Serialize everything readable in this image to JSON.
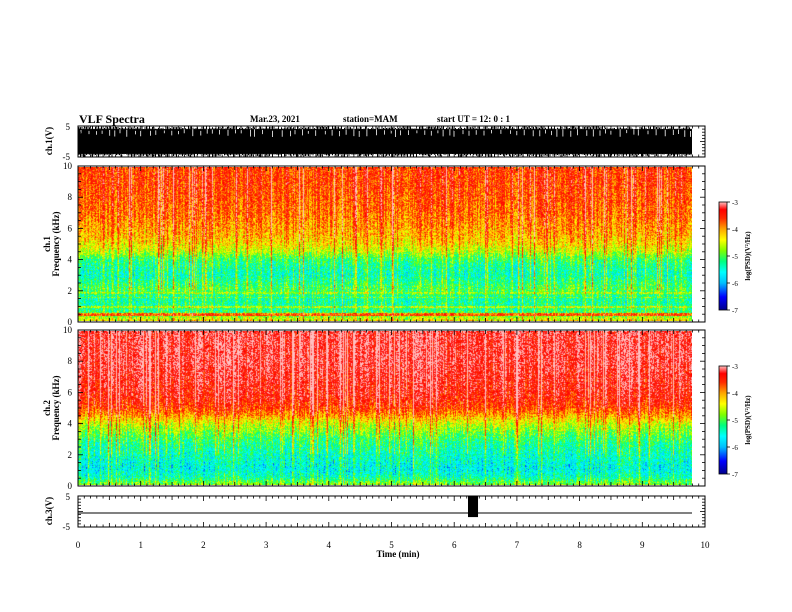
{
  "header": {
    "title": "VLF Spectra",
    "date": "Mar.23, 2021",
    "station": "station=MAM",
    "start_time": "start  UT  =   12: 0  : 1"
  },
  "colors": {
    "spectrogram_colormap": [
      "#00008b",
      "#0000ff",
      "#00bfff",
      "#00ffff",
      "#00ff7f",
      "#7fff00",
      "#ffff00",
      "#ffa500",
      "#ff2a00",
      "#ff0000",
      "#ffc0c0"
    ],
    "waveform": "#000000"
  },
  "chart_data": [
    {
      "type": "line",
      "name": "ch1-waveform",
      "ylabel": "ch.1(V)",
      "ylim": [
        -5,
        5
      ],
      "y_ticks": [
        "5",
        "-5"
      ],
      "xlim": [
        0,
        10
      ],
      "description_values": {
        "amplitude_range_V": [
          -5,
          5
        ],
        "baseline_V": -1.5,
        "mean_envelope_V": [
          -4,
          4
        ]
      }
    },
    {
      "type": "heatmap",
      "name": "ch1-spectrogram",
      "ylabel": "ch.1\nFrequency  (kHz)",
      "ylim": [
        0,
        10
      ],
      "y_ticks": [
        "0",
        "2",
        "4",
        "6",
        "8",
        "10"
      ],
      "xlim": [
        0,
        9.83
      ],
      "colorbar": {
        "label": "log(PSD)(V²/Hz)",
        "range": [
          -7,
          -3
        ],
        "ticks": [
          "-3",
          "-4",
          "-5",
          "-6",
          "-7"
        ]
      },
      "freq_profile_kHz": [
        0,
        0.5,
        1.0,
        1.5,
        2.0,
        2.5,
        3.0,
        3.5,
        4.0,
        4.5,
        5.0,
        5.5,
        6.0,
        7.0,
        8.0,
        9.0,
        10.0
      ],
      "log_psd_profile": [
        -4.6,
        -5.3,
        -5.5,
        -5.5,
        -5.2,
        -5.4,
        -5.6,
        -5.5,
        -5.3,
        -4.8,
        -4.5,
        -4.3,
        -4.2,
        -4.0,
        -3.9,
        -3.8,
        -3.8
      ]
    },
    {
      "type": "heatmap",
      "name": "ch2-spectrogram",
      "ylabel": "ch.2\nFrequency  (kHz)",
      "ylim": [
        0,
        10
      ],
      "y_ticks": [
        "0",
        "2",
        "4",
        "6",
        "8",
        "10"
      ],
      "xlim": [
        0,
        9.83
      ],
      "colorbar": {
        "label": "log(PSD)(V²/Hz)",
        "range": [
          -7,
          -3
        ],
        "ticks": [
          "-3",
          "-4",
          "-5",
          "-6",
          "-7"
        ]
      },
      "freq_profile_kHz": [
        0,
        0.5,
        1.0,
        1.5,
        2.0,
        2.5,
        3.0,
        3.5,
        4.0,
        4.5,
        5.0,
        5.5,
        6.0,
        7.0,
        8.0,
        9.0,
        10.0
      ],
      "log_psd_profile": [
        -5.0,
        -5.6,
        -5.8,
        -5.7,
        -5.6,
        -5.5,
        -5.3,
        -5.0,
        -4.7,
        -4.2,
        -3.8,
        -3.6,
        -3.5,
        -3.4,
        -3.3,
        -3.3,
        -3.3
      ]
    },
    {
      "type": "line",
      "name": "ch3-waveform",
      "ylabel": "ch.3(V)",
      "ylim": [
        -5,
        5
      ],
      "y_ticks": [
        "5",
        "-5"
      ],
      "xlim": [
        0,
        10
      ],
      "xlabel": "Time  (min)",
      "x_ticks": [
        "0",
        "1",
        "2",
        "3",
        "4",
        "5",
        "6",
        "7",
        "8",
        "9",
        "10"
      ],
      "description_values": {
        "baseline_V": -1.8,
        "pulse_start_min": 6.22,
        "pulse_end_min": 6.38,
        "pulse_range_V": [
          -1.8,
          5
        ]
      }
    }
  ]
}
